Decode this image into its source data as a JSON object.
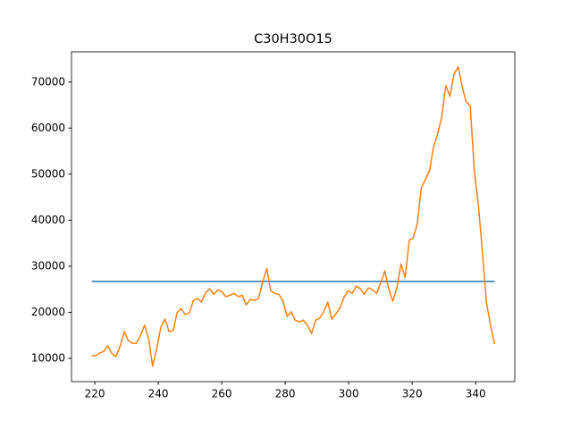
{
  "chart_data": {
    "type": "line",
    "title": "C30H30O15",
    "xlim": [
      212.65,
      352.35
    ],
    "ylim": [
      4945,
      76555
    ],
    "xticks": [
      220,
      240,
      260,
      280,
      300,
      320,
      340
    ],
    "yticks": [
      10000,
      20000,
      30000,
      40000,
      50000,
      60000,
      70000
    ],
    "grid": false,
    "series": [
      {
        "color": "#1f77b4",
        "x": [
          219,
          346
        ],
        "values": [
          26700,
          26700
        ]
      },
      {
        "color": "#ff7f0e",
        "x": [
          219.0,
          220.3,
          221.6,
          222.8,
          224.1,
          225.4,
          226.7,
          228.0,
          229.3,
          230.5,
          231.8,
          233.1,
          234.4,
          235.7,
          237.0,
          238.2,
          239.5,
          240.8,
          242.1,
          243.4,
          244.7,
          245.9,
          247.2,
          248.5,
          249.8,
          251.1,
          252.4,
          253.6,
          254.9,
          256.2,
          257.5,
          258.8,
          260.0,
          261.3,
          262.6,
          263.9,
          265.2,
          266.5,
          267.7,
          269.0,
          270.3,
          271.6,
          272.9,
          274.2,
          275.4,
          276.7,
          278.0,
          279.3,
          280.6,
          281.9,
          283.1,
          284.4,
          285.7,
          287.0,
          288.3,
          289.6,
          290.8,
          292.1,
          293.4,
          294.7,
          296.0,
          297.3,
          298.5,
          299.8,
          301.1,
          302.4,
          303.7,
          304.9,
          306.2,
          307.5,
          308.8,
          310.1,
          311.4,
          312.6,
          313.9,
          315.2,
          316.5,
          317.8,
          319.1,
          320.3,
          321.6,
          322.9,
          324.2,
          325.5,
          326.8,
          328.0,
          329.3,
          330.6,
          331.9,
          333.2,
          334.5,
          335.7,
          337.0,
          338.3,
          339.6,
          340.9,
          342.1,
          343.4,
          344.7,
          346.0
        ],
        "values": [
          10600,
          10600,
          11200,
          11500,
          12700,
          11000,
          10400,
          12700,
          15800,
          13900,
          13300,
          13300,
          15000,
          17200,
          14100,
          8300,
          12100,
          16800,
          18500,
          15800,
          16000,
          19900,
          20800,
          19500,
          19900,
          22600,
          23000,
          22200,
          24300,
          25100,
          23900,
          24900,
          24500,
          23400,
          23700,
          24100,
          23400,
          23700,
          21600,
          22800,
          22600,
          23000,
          26600,
          29500,
          24700,
          24100,
          23900,
          22400,
          19100,
          20100,
          18300,
          17900,
          18300,
          17200,
          15400,
          18300,
          18700,
          20100,
          22200,
          18500,
          19700,
          21000,
          23200,
          24700,
          24100,
          25700,
          25100,
          23900,
          25300,
          24900,
          24100,
          26400,
          29000,
          25100,
          22400,
          25300,
          30500,
          27600,
          35700,
          36100,
          39200,
          47000,
          48900,
          50800,
          56100,
          58600,
          62400,
          69200,
          66900,
          71700,
          73300,
          69200,
          65700,
          64800,
          50800,
          43100,
          33400,
          22200,
          17200,
          13100
        ]
      }
    ]
  }
}
